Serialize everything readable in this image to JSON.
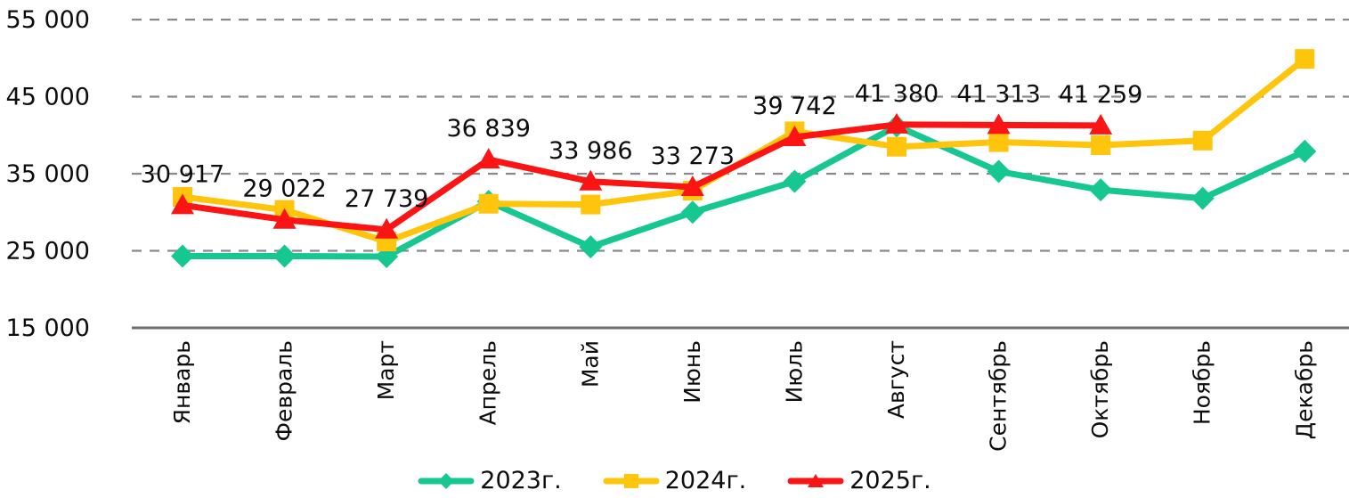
{
  "chart_data": {
    "type": "line",
    "categories": [
      "Январь",
      "Февраль",
      "Март",
      "Апрель",
      "Май",
      "Июнь",
      "Июль",
      "Август",
      "Сентябрь",
      "Октябрь",
      "Ноябрь",
      "Декабрь"
    ],
    "yticks": [
      "55 000",
      "45 000",
      "35 000",
      "25 000",
      "15 000"
    ],
    "ytick_values": [
      55000,
      45000,
      35000,
      25000,
      15000
    ],
    "ylim": [
      15000,
      55000
    ],
    "grid": "horizontal-dashed",
    "legend_position": "bottom-center",
    "axis_color": "#6e6e6e",
    "gridline_color": "#8a8a8a",
    "label_color": "#0d0d0d",
    "series": [
      {
        "name": "2023г.",
        "color": "#17c791",
        "marker": "diamond",
        "values": [
          24300,
          24300,
          24250,
          31400,
          25500,
          30000,
          34000,
          41200,
          35300,
          32900,
          31800,
          37900
        ]
      },
      {
        "name": "2024г.",
        "color": "#ffc50d",
        "marker": "square",
        "values": [
          32000,
          30300,
          26200,
          31100,
          31000,
          32800,
          40500,
          38500,
          39100,
          38700,
          39300,
          49900
        ]
      },
      {
        "name": "2025г.",
        "color": "#fa1414",
        "marker": "triangle",
        "values": [
          30917,
          29022,
          27739,
          36839,
          33986,
          33273,
          39742,
          41380,
          41313,
          41259,
          null,
          null
        ],
        "labels": [
          "30 917",
          "29 022",
          "27 739",
          "36 839",
          "33 986",
          "33 273",
          "39 742",
          "41 380",
          "41 313",
          "41 259"
        ]
      }
    ]
  }
}
